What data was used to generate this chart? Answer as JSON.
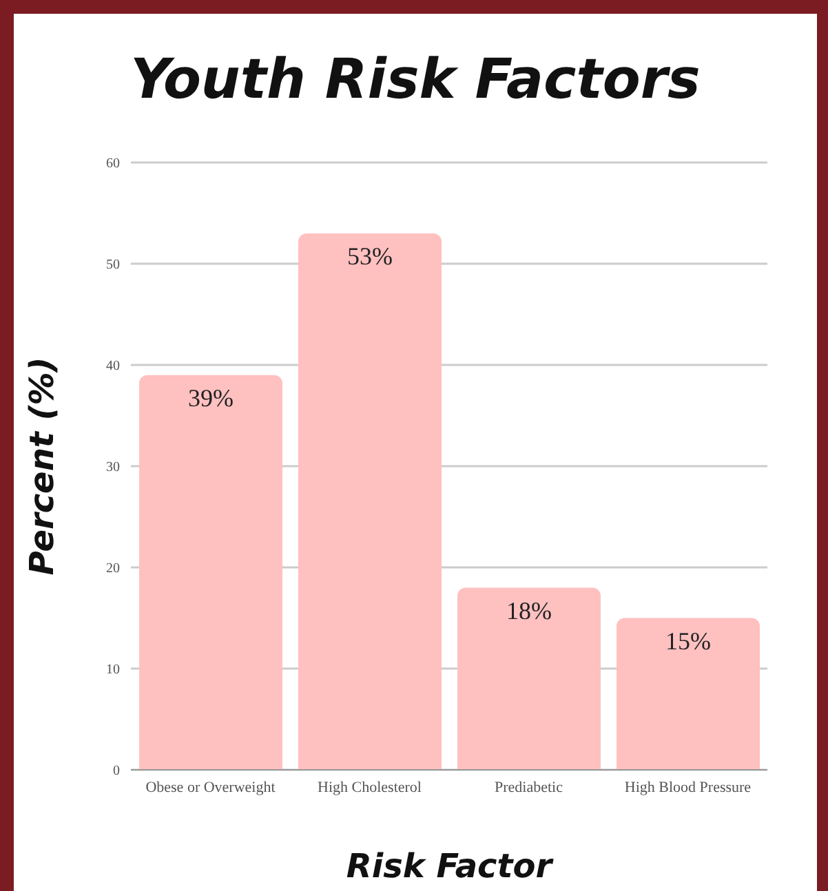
{
  "chart_data": {
    "type": "bar",
    "title": "Youth Risk Factors",
    "xlabel": "Risk Factor",
    "ylabel": "Percent (%)",
    "categories": [
      "Obese or Overweight",
      "High Cholesterol",
      "Prediabetic",
      "High Blood Pressure"
    ],
    "values": [
      39,
      53,
      18,
      15
    ],
    "value_labels": [
      "39%",
      "53%",
      "18%",
      "15%"
    ],
    "color": "#ffc0c0",
    "ylim": [
      0,
      60
    ],
    "yticks": [
      0,
      10,
      20,
      30,
      40,
      50,
      60
    ],
    "grid": "y"
  }
}
